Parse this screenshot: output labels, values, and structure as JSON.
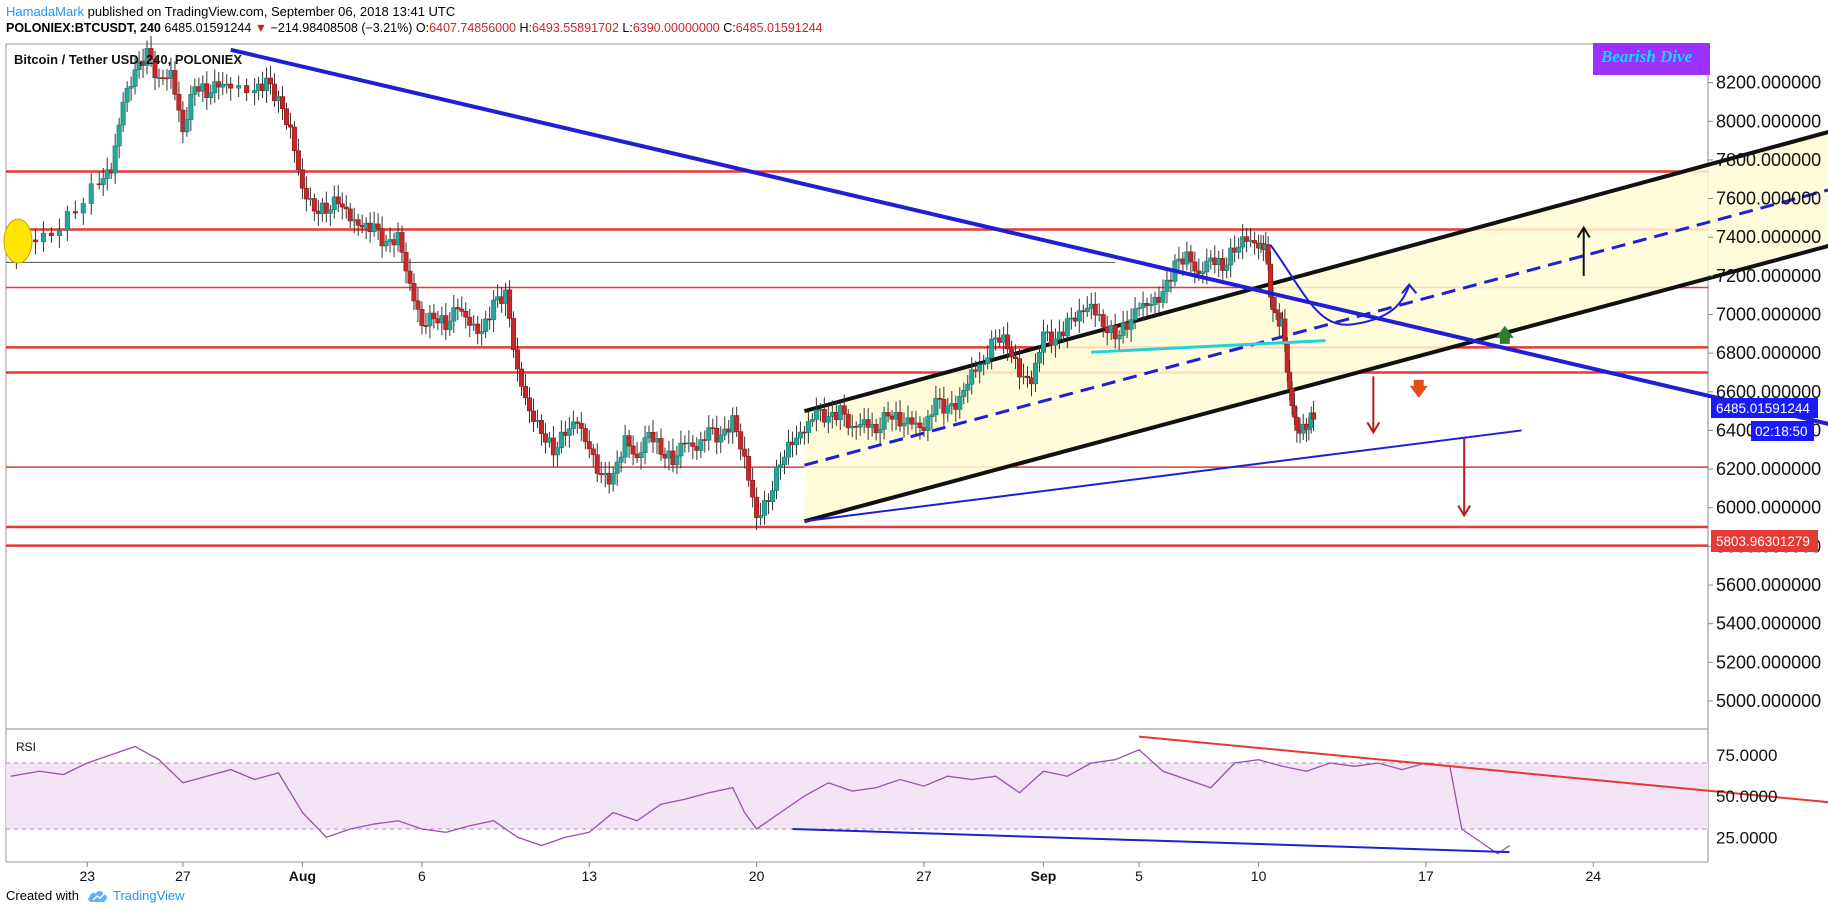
{
  "header": {
    "author": "HamadaMark",
    "published": "published on TradingView.com, September 06, 2018 13:41 UTC",
    "symbol": "POLONIEX:BTCUSDT, 240",
    "last": "6485.01591244",
    "down_arrow": "▼",
    "change": "−214.98408508 (−3.21%)",
    "open_label": "O:",
    "open": "6407.74856000",
    "high_label": "H:",
    "high": "6493.55891702",
    "low_label": "L:",
    "low": "6390.00000000",
    "close_label": "C:",
    "close": "6485.01591244"
  },
  "legend": "Bitcoin / Tether USD, 240, POLONIEX",
  "banner": "Bearish Dive",
  "rsi_label": "RSI",
  "price_badge": "6485.01591244",
  "countdown_badge": "02:18:50",
  "level_badge": "5803.96301279",
  "footer": {
    "created_with": "Created with",
    "brand": "TradingView",
    "brand_icon": "tradingview-cloud-icon"
  },
  "colors": {
    "up": "#26a69a",
    "down": "#ef5350",
    "candle_up_body": "#26a69a",
    "candle_down_body": "#c62828",
    "trend_blue": "#1f1fd6",
    "channel_fill": "#fffbd6",
    "level_red": "#e53935",
    "rsi_band": "#f3e5f5",
    "rsi_line": "#9c4fb0",
    "banner_bg": "#9b30ff",
    "banner_text": "#00e5ff"
  },
  "chart_data": {
    "type": "candlestick",
    "title": "Bitcoin / Tether USD, 240, POLONIEX",
    "y_ticks": [
      "8200.000000",
      "8000.000000",
      "7800.000000",
      "7600.000000",
      "7400.000000",
      "7200.000000",
      "7000.000000",
      "6800.000000",
      "6600.000000",
      "6400.000000",
      "6200.000000",
      "6000.000000",
      "5800.000000",
      "5600.000000",
      "5400.000000",
      "5200.000000",
      "5000.000000"
    ],
    "y_tick_values": [
      8200,
      8000,
      7800,
      7600,
      7400,
      7200,
      7000,
      6800,
      6600,
      6400,
      6200,
      6000,
      5800,
      5600,
      5400,
      5200,
      5000
    ],
    "ylim": [
      4860,
      8400
    ],
    "x_ticks": [
      "23",
      "27",
      "Aug",
      "6",
      "13",
      "20",
      "27",
      "Sep",
      "5",
      "10",
      "17",
      "24"
    ],
    "x_tick_days": [
      0,
      4,
      9,
      14,
      21,
      28,
      35,
      40,
      44,
      49,
      56,
      63
    ],
    "xlim_days": [
      -3.4,
      67.8
    ],
    "close_path": [
      [
        -3.2,
        7300
      ],
      [
        -2.5,
        7380
      ],
      [
        -1.5,
        7420
      ],
      [
        -0.5,
        7550
      ],
      [
        0.5,
        7700
      ],
      [
        1.0,
        7750
      ],
      [
        1.5,
        8100
      ],
      [
        2.0,
        8250
      ],
      [
        2.5,
        8350
      ],
      [
        3.0,
        8200
      ],
      [
        3.5,
        8250
      ],
      [
        4.0,
        7950
      ],
      [
        4.5,
        8200
      ],
      [
        5.0,
        8150
      ],
      [
        5.5,
        8200
      ],
      [
        6.0,
        8180
      ],
      [
        7.0,
        8150
      ],
      [
        7.5,
        8200
      ],
      [
        8.0,
        8100
      ],
      [
        8.5,
        7950
      ],
      [
        9.0,
        7650
      ],
      [
        9.5,
        7550
      ],
      [
        10.0,
        7550
      ],
      [
        10.5,
        7600
      ],
      [
        11.0,
        7500
      ],
      [
        11.5,
        7450
      ],
      [
        12.0,
        7450
      ],
      [
        12.5,
        7350
      ],
      [
        13.0,
        7400
      ],
      [
        13.5,
        7150
      ],
      [
        14.0,
        6950
      ],
      [
        14.5,
        7000
      ],
      [
        15.0,
        6950
      ],
      [
        15.5,
        7050
      ],
      [
        16.0,
        6950
      ],
      [
        16.5,
        6900
      ],
      [
        17.0,
        7050
      ],
      [
        17.5,
        7100
      ],
      [
        18.0,
        6700
      ],
      [
        18.5,
        6500
      ],
      [
        19.0,
        6400
      ],
      [
        19.5,
        6300
      ],
      [
        20.0,
        6400
      ],
      [
        20.5,
        6450
      ],
      [
        21.0,
        6300
      ],
      [
        21.5,
        6150
      ],
      [
        22.0,
        6150
      ],
      [
        22.5,
        6350
      ],
      [
        23.0,
        6250
      ],
      [
        23.5,
        6400
      ],
      [
        24.0,
        6300
      ],
      [
        24.5,
        6250
      ],
      [
        25.0,
        6350
      ],
      [
        25.5,
        6300
      ],
      [
        26.0,
        6400
      ],
      [
        26.5,
        6350
      ],
      [
        27.0,
        6450
      ],
      [
        27.5,
        6250
      ],
      [
        28.0,
        5950
      ],
      [
        28.5,
        6050
      ],
      [
        29.0,
        6250
      ],
      [
        29.5,
        6350
      ],
      [
        30.0,
        6400
      ],
      [
        30.5,
        6500
      ],
      [
        31.0,
        6450
      ],
      [
        31.5,
        6500
      ],
      [
        32.0,
        6400
      ],
      [
        32.5,
        6450
      ],
      [
        33.0,
        6400
      ],
      [
        33.5,
        6500
      ],
      [
        34.0,
        6450
      ],
      [
        34.5,
        6450
      ],
      [
        35.0,
        6400
      ],
      [
        35.5,
        6550
      ],
      [
        36.0,
        6500
      ],
      [
        36.5,
        6550
      ],
      [
        37.0,
        6700
      ],
      [
        37.5,
        6750
      ],
      [
        38.0,
        6900
      ],
      [
        38.5,
        6850
      ],
      [
        39.0,
        6700
      ],
      [
        39.5,
        6650
      ],
      [
        40.0,
        6900
      ],
      [
        40.5,
        6850
      ],
      [
        41.0,
        6950
      ],
      [
        41.5,
        7000
      ],
      [
        42.0,
        7050
      ],
      [
        42.5,
        6950
      ],
      [
        43.0,
        6900
      ],
      [
        43.5,
        6950
      ],
      [
        44.0,
        7050
      ],
      [
        44.5,
        7050
      ],
      [
        45.0,
        7100
      ],
      [
        45.5,
        7250
      ],
      [
        46.0,
        7300
      ],
      [
        46.5,
        7200
      ],
      [
        47.0,
        7300
      ],
      [
        47.5,
        7250
      ],
      [
        48.0,
        7350
      ],
      [
        48.5,
        7400
      ],
      [
        49.0,
        7350
      ],
      [
        49.3,
        7350
      ],
      [
        49.6,
        7000
      ],
      [
        50.0,
        6950
      ],
      [
        50.3,
        6600
      ],
      [
        50.6,
        6400
      ],
      [
        51.0,
        6420
      ],
      [
        51.3,
        6485
      ]
    ],
    "levels": [
      7740,
      7440,
      7140,
      6830,
      6700,
      6210,
      5900,
      5804
    ],
    "channel": {
      "upper": [
        [
          30,
          6500
        ],
        [
          73,
          7950
        ]
      ],
      "lower": [
        [
          30,
          5930
        ],
        [
          73,
          7360
        ]
      ],
      "mid": [
        [
          30,
          6220
        ],
        [
          73,
          7650
        ]
      ]
    },
    "downtrend": [
      [
        6,
        8370
      ],
      [
        93,
        5850
      ]
    ],
    "support": [
      [
        30,
        5930
      ],
      [
        60,
        6400
      ]
    ],
    "rsi": {
      "y_ticks": [
        "75.0000",
        "50.0000",
        "25.0000"
      ],
      "y_tick_values": [
        75,
        50,
        25
      ],
      "band": [
        30,
        70
      ],
      "ylim": [
        10,
        90
      ],
      "values": [
        [
          -3.2,
          62
        ],
        [
          -2,
          65
        ],
        [
          -1,
          63
        ],
        [
          0,
          70
        ],
        [
          1,
          75
        ],
        [
          2,
          80
        ],
        [
          3,
          72
        ],
        [
          4,
          58
        ],
        [
          5,
          62
        ],
        [
          6,
          66
        ],
        [
          7,
          60
        ],
        [
          8,
          64
        ],
        [
          9,
          40
        ],
        [
          10,
          25
        ],
        [
          11,
          30
        ],
        [
          12,
          33
        ],
        [
          13,
          35
        ],
        [
          14,
          30
        ],
        [
          15,
          28
        ],
        [
          16,
          32
        ],
        [
          17,
          35
        ],
        [
          18,
          25
        ],
        [
          19,
          20
        ],
        [
          20,
          25
        ],
        [
          21,
          28
        ],
        [
          22,
          40
        ],
        [
          23,
          35
        ],
        [
          24,
          45
        ],
        [
          25,
          48
        ],
        [
          26,
          52
        ],
        [
          27,
          55
        ],
        [
          27.5,
          40
        ],
        [
          28,
          30
        ],
        [
          29,
          40
        ],
        [
          30,
          50
        ],
        [
          31,
          58
        ],
        [
          32,
          53
        ],
        [
          33,
          55
        ],
        [
          34,
          60
        ],
        [
          35,
          56
        ],
        [
          36,
          62
        ],
        [
          37,
          60
        ],
        [
          38,
          62
        ],
        [
          39,
          52
        ],
        [
          40,
          65
        ],
        [
          41,
          62
        ],
        [
          42,
          70
        ],
        [
          43,
          72
        ],
        [
          44,
          78
        ],
        [
          45,
          65
        ],
        [
          46,
          60
        ],
        [
          47,
          55
        ],
        [
          48,
          70
        ],
        [
          49,
          72
        ],
        [
          50,
          68
        ],
        [
          51,
          65
        ],
        [
          52,
          70
        ],
        [
          53,
          68
        ],
        [
          54,
          70
        ],
        [
          55,
          66
        ],
        [
          56,
          70
        ],
        [
          57,
          68
        ],
        [
          57.5,
          30
        ],
        [
          58,
          25
        ],
        [
          58.5,
          20
        ],
        [
          59,
          15
        ],
        [
          59.5,
          20
        ]
      ],
      "divergence_line": [
        [
          44,
          86
        ],
        [
          89,
          24
        ]
      ],
      "support_line": [
        [
          29.5,
          30
        ],
        [
          59.5,
          16
        ]
      ]
    }
  }
}
